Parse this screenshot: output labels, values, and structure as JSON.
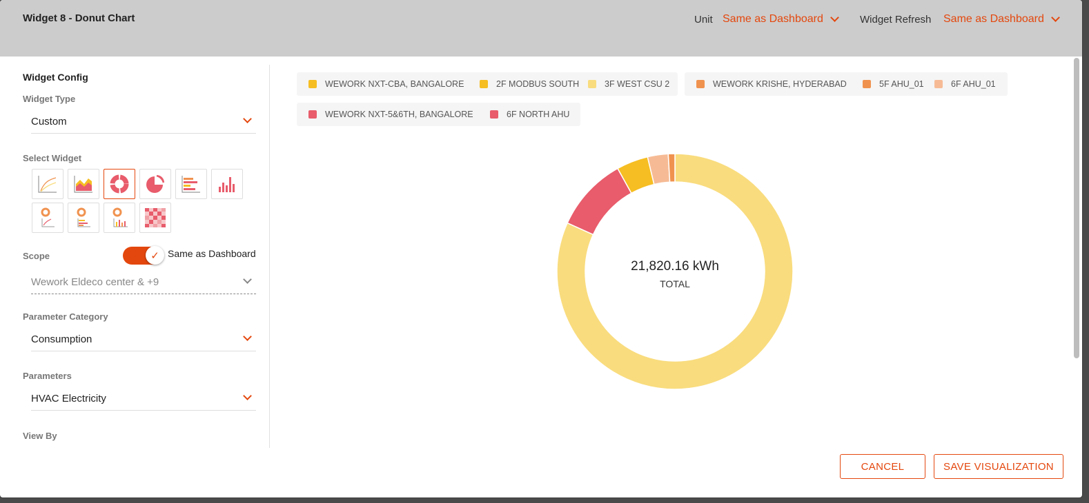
{
  "header": {
    "title": "Widget 8 - Donut Chart",
    "unit_label": "Unit",
    "unit_value": "Same as Dashboard",
    "refresh_label": "Widget Refresh",
    "refresh_value": "Same as Dashboard"
  },
  "config": {
    "section_title": "Widget Config",
    "widget_type_label": "Widget Type",
    "widget_type_value": "Custom",
    "select_widget_label": "Select Widget",
    "widget_icons": [
      "line-chart-icon",
      "area-chart-icon",
      "donut-chart-icon",
      "pie-chart-icon",
      "horizontal-bar-chart-icon",
      "column-chart-icon",
      "donut-line-combo-icon",
      "donut-bar-combo-icon",
      "donut-column-combo-icon",
      "heatmap-icon"
    ],
    "selected_widget": "donut-chart-icon",
    "scope_label": "Scope",
    "scope_toggle_on": true,
    "scope_toggle_label": "Same as Dashboard",
    "scope_value": "Wework Eldeco center & +9",
    "param_category_label": "Parameter Category",
    "param_category_value": "Consumption",
    "parameters_label": "Parameters",
    "parameters_value": "HVAC Electricity",
    "view_by_label": "View By"
  },
  "legend": [
    {
      "group": "WEWORK NXT-CBA, BANGALORE",
      "color": "#f6be22",
      "items": [
        {
          "name": "2F MODBUS SOUTH",
          "color": "#f6be22"
        },
        {
          "name": "3F WEST CSU 2",
          "color": "#f9dc7e"
        }
      ]
    },
    {
      "group": "WEWORK KRISHE, HYDERABAD",
      "color": "#f0924f",
      "items": [
        {
          "name": "5F AHU_01",
          "color": "#f0924f"
        },
        {
          "name": "6F AHU_01",
          "color": "#f6bb95"
        }
      ]
    },
    {
      "group": "WEWORK NXT-5&6TH, BANGALORE",
      "color": "#e85c6b",
      "items": [
        {
          "name": "6F NORTH AHU",
          "color": "#e85c6b"
        }
      ]
    }
  ],
  "chart_data": {
    "type": "pie",
    "donut": true,
    "total_value": "21,820.16 kWh",
    "total_label": "TOTAL",
    "slices": [
      {
        "name": "3F WEST CSU 2",
        "value": 81.1,
        "color": "#f9dc7e"
      },
      {
        "name": "6F NORTH AHU",
        "value": 10.1,
        "color": "#e85c6b"
      },
      {
        "name": "2F MODBUS SOUTH",
        "value": 4.3,
        "color": "#f6be22"
      },
      {
        "name": "6F AHU_01",
        "value": 2.8,
        "color": "#f6bb95"
      },
      {
        "name": "5F AHU_01",
        "value": 0.9,
        "color": "#f0924f"
      }
    ]
  },
  "footer": {
    "cancel_label": "CANCEL",
    "save_label": "SAVE VISUALIZATION"
  }
}
